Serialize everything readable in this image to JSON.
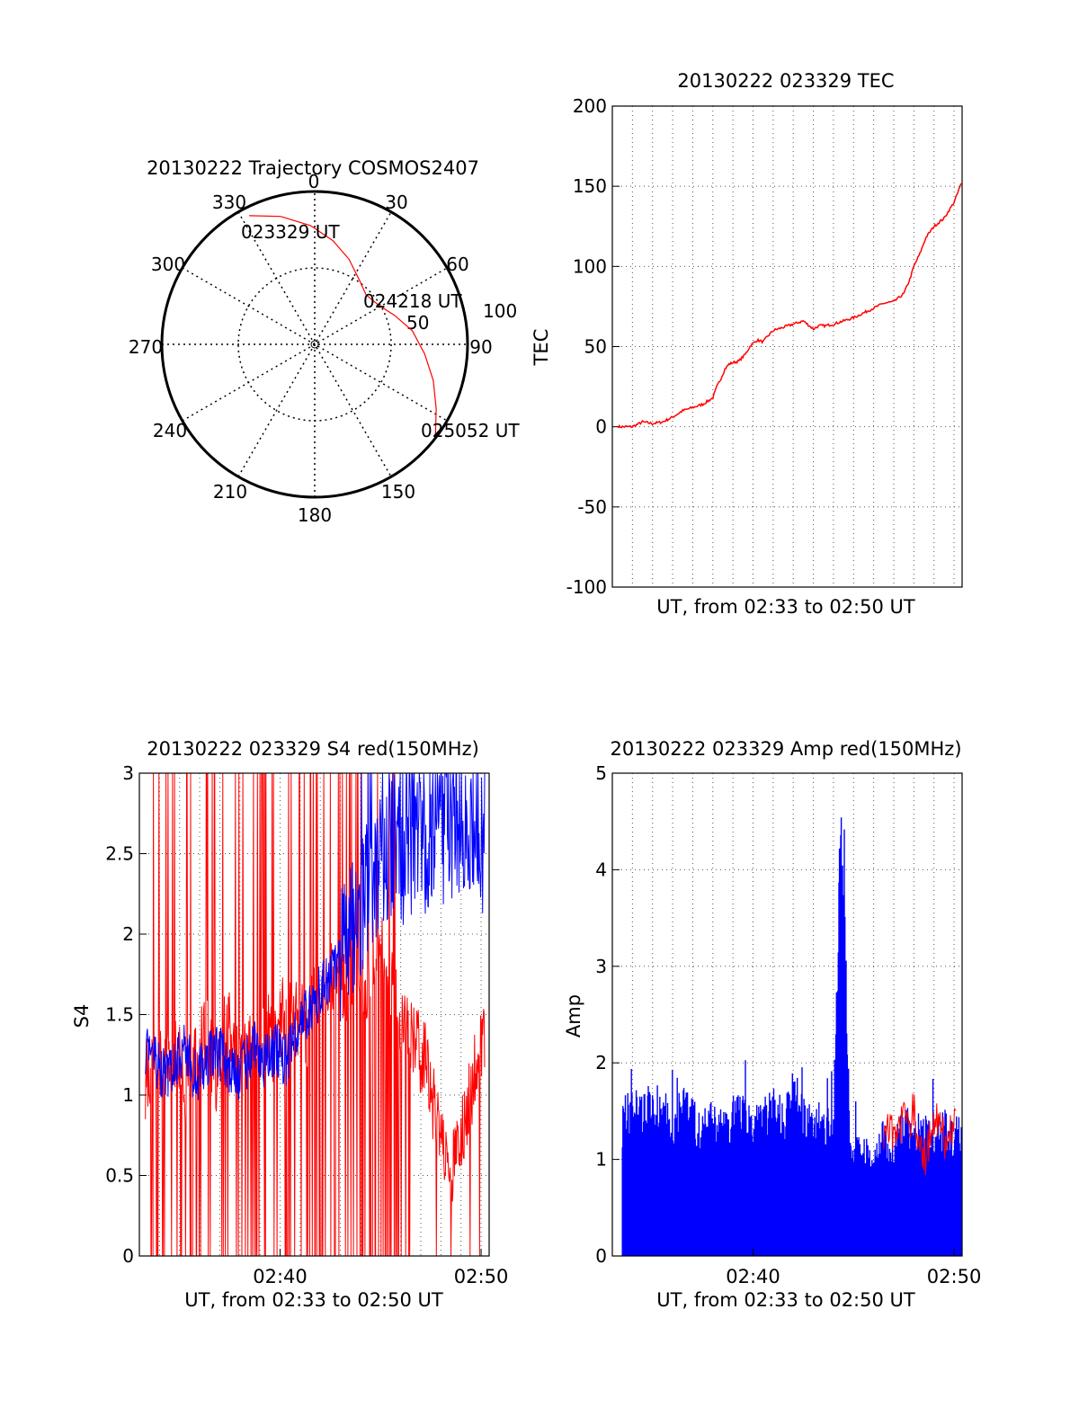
{
  "colors": {
    "red": "#ff0000",
    "blue": "#0000ff",
    "axis": "#000000",
    "grid": "#555555"
  },
  "chart_data": [
    {
      "id": "trajectory",
      "type": "scatter",
      "projection": "polar",
      "title": "20130222 Trajectory COSMOS2407",
      "azimuth_labels": [
        "0",
        "30",
        "60",
        "90",
        "150",
        "180",
        "210",
        "240",
        "270",
        "300",
        "330"
      ],
      "elevation_ring_labels": [
        "50",
        "100"
      ],
      "grid": true,
      "series": [
        {
          "color": "red",
          "points": [
            {
              "az": -27,
              "el": 5
            },
            {
              "az": -15,
              "el": 12
            },
            {
              "az": -2,
              "el": 20
            },
            {
              "az": 10,
              "el": 28
            },
            {
              "az": 22,
              "el": 36
            },
            {
              "az": 35,
              "el": 44
            },
            {
              "az": 46,
              "el": 48
            },
            {
              "az": 58,
              "el": 46
            },
            {
              "az": 70,
              "el": 40
            },
            {
              "az": 82,
              "el": 32
            },
            {
              "az": 95,
              "el": 25
            },
            {
              "az": 107,
              "el": 17
            },
            {
              "az": 118,
              "el": 9
            },
            {
              "az": 127,
              "el": 1
            }
          ]
        }
      ],
      "annotations": [
        {
          "text": "023329 UT",
          "az": -27,
          "el": 5
        },
        {
          "text": "024218 UT",
          "az": 58,
          "el": 46
        },
        {
          "text": "025052 UT",
          "az": 127,
          "el": 1
        }
      ]
    },
    {
      "id": "tec",
      "type": "line",
      "title": "20130222 023329 TEC",
      "xlabel": "UT, from 02:33 to 02:50 UT",
      "ylabel": "TEC",
      "xlim": [
        0,
        17.4
      ],
      "ylim": [
        -100,
        200
      ],
      "yticks": [
        "200",
        "150",
        "100",
        "50",
        "0",
        "-50",
        "-100"
      ],
      "grid": true,
      "series": [
        {
          "color": "red",
          "x": [
            0.3,
            1.0,
            1.5,
            2.0,
            2.5,
            3.0,
            3.5,
            4.0,
            4.5,
            5.0,
            5.2,
            5.4,
            5.6,
            5.8,
            6.0,
            6.3,
            6.6,
            6.9,
            7.2,
            7.5,
            7.7,
            8.0,
            8.5,
            9.0,
            9.5,
            10.0,
            10.3,
            10.6,
            11.0,
            11.5,
            12.0,
            12.5,
            13.0,
            13.5,
            14.0,
            14.5,
            14.8,
            15.0,
            15.3,
            15.6,
            16.0,
            16.5,
            17.0,
            17.4
          ],
          "y": [
            0,
            0,
            3,
            2,
            3,
            6,
            10,
            12,
            14,
            18,
            25,
            30,
            36,
            39,
            40,
            41,
            45,
            51,
            54,
            53,
            56,
            60,
            62,
            64,
            66,
            61,
            63,
            63,
            64,
            66,
            68,
            71,
            74,
            77,
            78,
            83,
            92,
            100,
            108,
            118,
            125,
            130,
            140,
            153
          ]
        }
      ]
    },
    {
      "id": "s4",
      "type": "line",
      "title": "20130222 023329 S4 red(150MHz)",
      "xlabel": "UT, from 02:33 to 02:50 UT",
      "ylabel": "S4",
      "xlim": [
        0,
        17.4
      ],
      "ylim": [
        0,
        3
      ],
      "yticks": [
        "3",
        "2.5",
        "2",
        "1.5",
        "1",
        "0.5",
        "0"
      ],
      "xticks": [
        {
          "x": 7,
          "label": "02:40"
        },
        {
          "x": 17,
          "label": "02:50"
        }
      ],
      "grid": true,
      "series": [
        {
          "color": "red",
          "x": [
            0.3,
            0.8,
            1.3,
            1.8,
            2.3,
            2.8,
            3.3,
            3.8,
            4.3,
            4.8,
            5.3,
            5.8,
            6.3,
            6.8,
            7.3,
            7.8,
            8.3,
            8.8,
            9.3,
            9.8,
            10.3,
            10.8,
            11.3,
            11.8,
            12.3,
            12.8,
            13.3,
            13.8,
            14.3,
            14.8,
            15.3,
            15.8,
            16.3,
            16.8,
            17.2
          ],
          "y": [
            1.1,
            1.2,
            1.1,
            1.3,
            1.0,
            1.2,
            1.4,
            1.1,
            1.5,
            1.2,
            1.3,
            1.2,
            1.4,
            1.3,
            1.6,
            1.5,
            1.4,
            1.6,
            1.7,
            1.8,
            1.6,
            1.9,
            1.7,
            2.0,
            1.8,
            1.6,
            1.4,
            1.3,
            1.2,
            0.8,
            0.5,
            0.6,
            0.9,
            1.2,
            1.4
          ]
        },
        {
          "color": "blue",
          "x": [
            0.3,
            0.8,
            1.3,
            1.8,
            2.3,
            2.8,
            3.3,
            3.8,
            4.3,
            4.8,
            5.3,
            5.8,
            6.3,
            6.8,
            7.3,
            7.8,
            8.3,
            8.8,
            9.3,
            9.8,
            10.3,
            10.8,
            11.3,
            11.8,
            12.3,
            12.8,
            13.3,
            13.8,
            14.3,
            14.8,
            15.3,
            15.8,
            16.3,
            16.8,
            17.2
          ],
          "y": [
            1.3,
            1.2,
            1.1,
            1.2,
            1.3,
            1.1,
            1.2,
            1.3,
            1.2,
            1.1,
            1.2,
            1.3,
            1.2,
            1.3,
            1.2,
            1.4,
            1.5,
            1.6,
            1.7,
            1.8,
            1.9,
            2.1,
            2.3,
            2.4,
            2.5,
            2.6,
            2.4,
            2.6,
            2.5,
            2.7,
            2.6,
            2.5,
            2.7,
            2.6,
            2.5
          ]
        }
      ]
    },
    {
      "id": "amp",
      "type": "line",
      "title": "20130222 023329 Amp red(150MHz)",
      "xlabel": "UT, from 02:33 to 02:50 UT",
      "ylabel": "Amp",
      "xlim": [
        0,
        17.4
      ],
      "ylim": [
        0,
        5
      ],
      "yticks": [
        "5",
        "4",
        "3",
        "2",
        "1",
        "0"
      ],
      "xticks": [
        {
          "x": 7,
          "label": "02:40"
        },
        {
          "x": 17,
          "label": "02:50"
        }
      ],
      "grid": true,
      "series": [
        {
          "color": "blue",
          "x": [
            0.5,
            1.0,
            1.5,
            2.0,
            2.5,
            3.0,
            3.5,
            4.0,
            4.5,
            5.0,
            5.5,
            6.0,
            6.5,
            7.0,
            7.5,
            8.0,
            8.5,
            9.0,
            9.5,
            10.0,
            10.5,
            11.0,
            11.3,
            11.5,
            11.8,
            12.0,
            12.5,
            13.0,
            13.5,
            14.0,
            14.5,
            15.0,
            15.5,
            16.0,
            16.5,
            17.0,
            17.4
          ],
          "y": [
            1.5,
            1.6,
            1.5,
            1.7,
            1.6,
            1.5,
            1.6,
            1.5,
            1.4,
            1.5,
            1.4,
            1.5,
            1.6,
            1.4,
            1.5,
            1.6,
            1.5,
            1.8,
            1.5,
            1.4,
            1.5,
            1.4,
            3.9,
            4.6,
            1.3,
            1.1,
            1.2,
            1.0,
            1.3,
            1.2,
            1.4,
            1.3,
            1.4,
            1.3,
            1.4,
            1.3,
            1.4
          ]
        },
        {
          "color": "red",
          "x": [
            13.5,
            13.8,
            14.1,
            14.4,
            14.7,
            15.0,
            15.3,
            15.6,
            15.9,
            16.2,
            16.5,
            16.8,
            17.1
          ],
          "y": [
            1.2,
            1.3,
            1.1,
            1.4,
            1.3,
            1.5,
            1.2,
            1.0,
            1.3,
            1.4,
            1.2,
            1.3,
            1.4
          ]
        }
      ]
    }
  ]
}
